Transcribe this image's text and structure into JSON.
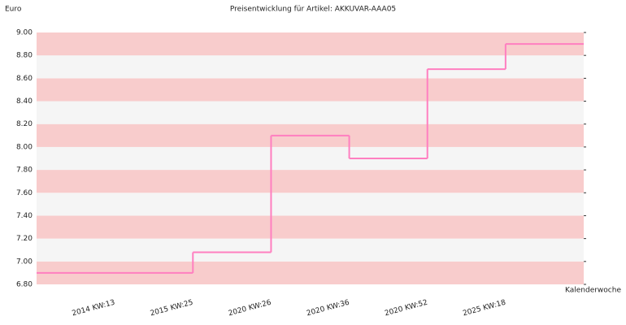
{
  "chart_data": {
    "type": "step",
    "title": "Preisentwicklung für Artikel: AKKUVAR-AAA05",
    "y_label": "Euro",
    "x_label": "Kalenderwoche",
    "categories": [
      "2014 KW:13",
      "2015 KW:25",
      "2020 KW:26",
      "2020 KW:36",
      "2020 KW:52",
      "2025 KW:18"
    ],
    "values": [
      6.9,
      7.08,
      8.1,
      7.9,
      8.68,
      8.9
    ],
    "color": "#ff7fc0",
    "band_colors": [
      "#f8cccc",
      "#f5f5f5"
    ],
    "ylim": [
      6.8,
      9.0
    ],
    "yticks": [
      {
        "value": 6.8,
        "label": "6.80"
      },
      {
        "value": 7.0,
        "label": "7.00"
      },
      {
        "value": 7.2,
        "label": "7.20"
      },
      {
        "value": 7.4,
        "label": "7.40"
      },
      {
        "value": 7.6,
        "label": "7.60"
      },
      {
        "value": 7.8,
        "label": "7.80"
      },
      {
        "value": 8.0,
        "label": "8.00"
      },
      {
        "value": 8.2,
        "label": "8.20"
      },
      {
        "value": 8.4,
        "label": "8.40"
      },
      {
        "value": 8.6,
        "label": "8.60"
      },
      {
        "value": 8.8,
        "label": "8.80"
      },
      {
        "value": 9.0,
        "label": "9.00"
      }
    ]
  }
}
